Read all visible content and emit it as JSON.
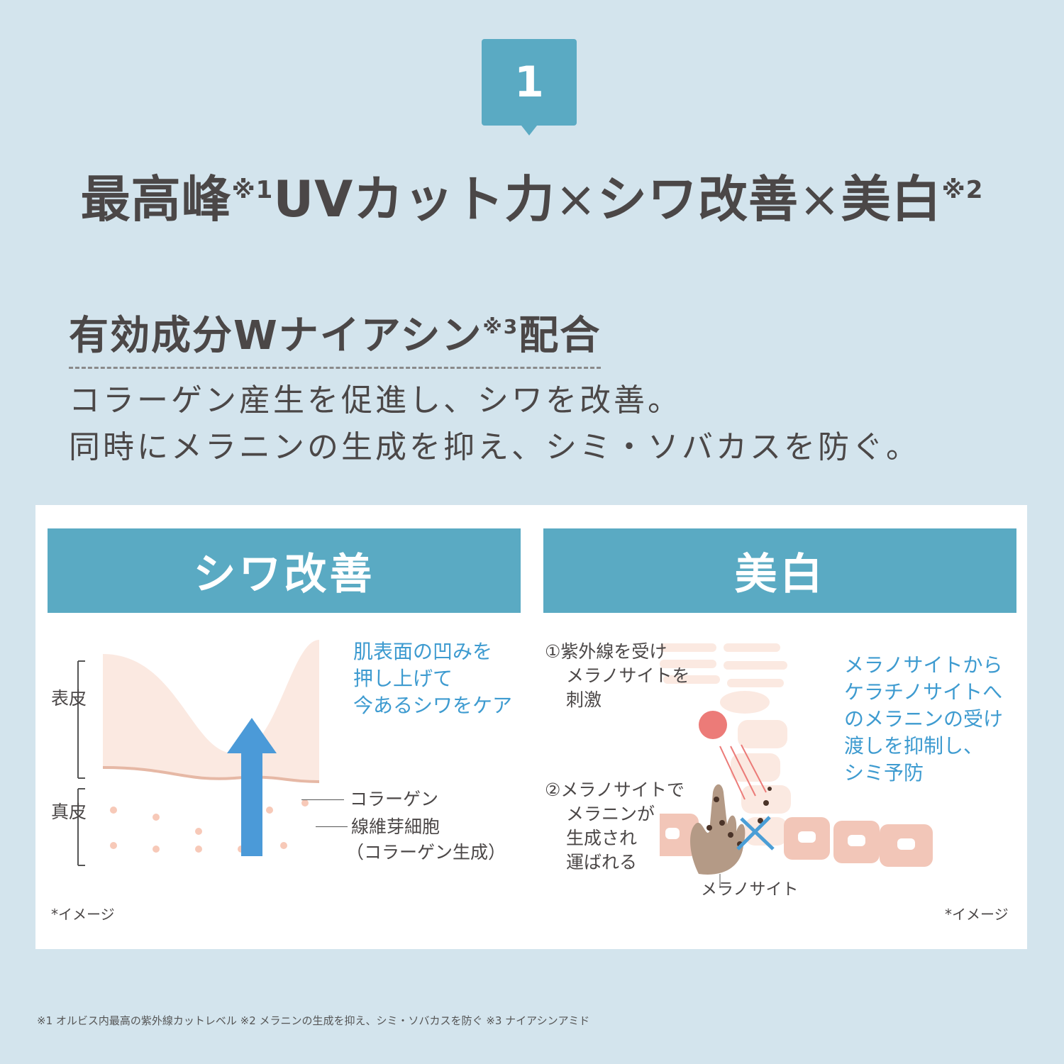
{
  "badge": {
    "number": "1"
  },
  "title": {
    "part1": "最高峰",
    "note1": "※1",
    "part2": "UVカット力",
    "times1": "×",
    "part3": "シワ改善",
    "times2": "×",
    "part4": "美白",
    "note2": "※2"
  },
  "subtitle": {
    "part1": "有効成分Wナイアシン",
    "note3": "※3",
    "part2": "配合"
  },
  "body": [
    "コラーゲン産生を促進し、シワを改善。",
    "同時にメラニンの生成を抑え、シミ・ソバカスを防ぐ。"
  ],
  "wrinkle": {
    "header": "シワ改善",
    "callout": [
      "肌表面の凹みを",
      "押し上げて",
      "今あるシワをケア"
    ],
    "layer_epidermis": "表皮",
    "layer_dermis": "真皮",
    "label_collagen": "コラーゲン",
    "label_fibroblast": "線維芽細胞",
    "label_fibroblast_note": "（コラーゲン生成）",
    "image_note": "*イメージ"
  },
  "whitening": {
    "header": "美白",
    "step1": [
      "①紫外線を受け",
      "メラノサイトを",
      "刺激"
    ],
    "step2": [
      "②メラノサイトで",
      "メラニンが",
      "生成され",
      "運ばれる"
    ],
    "callout": [
      "メラノサイトから",
      "ケラチノサイトへ",
      "のメラニンの受け",
      "渡しを抑制し、",
      "シミ予防"
    ],
    "label_melanocyte": "メラノサイト",
    "image_note": "*イメージ"
  },
  "footnote": "※1 オルビス内最高の紫外線カットレベル ※2 メラニンの生成を抑え、シミ・ソバカスを防ぐ ※3 ナイアシンアミド",
  "colors": {
    "background": "#d3e4ed",
    "accent": "#5aaac3",
    "callout_text": "#3e9bd0",
    "text": "#4b4747",
    "sun": "#ec7b78",
    "skin": "#f7dfd4"
  }
}
